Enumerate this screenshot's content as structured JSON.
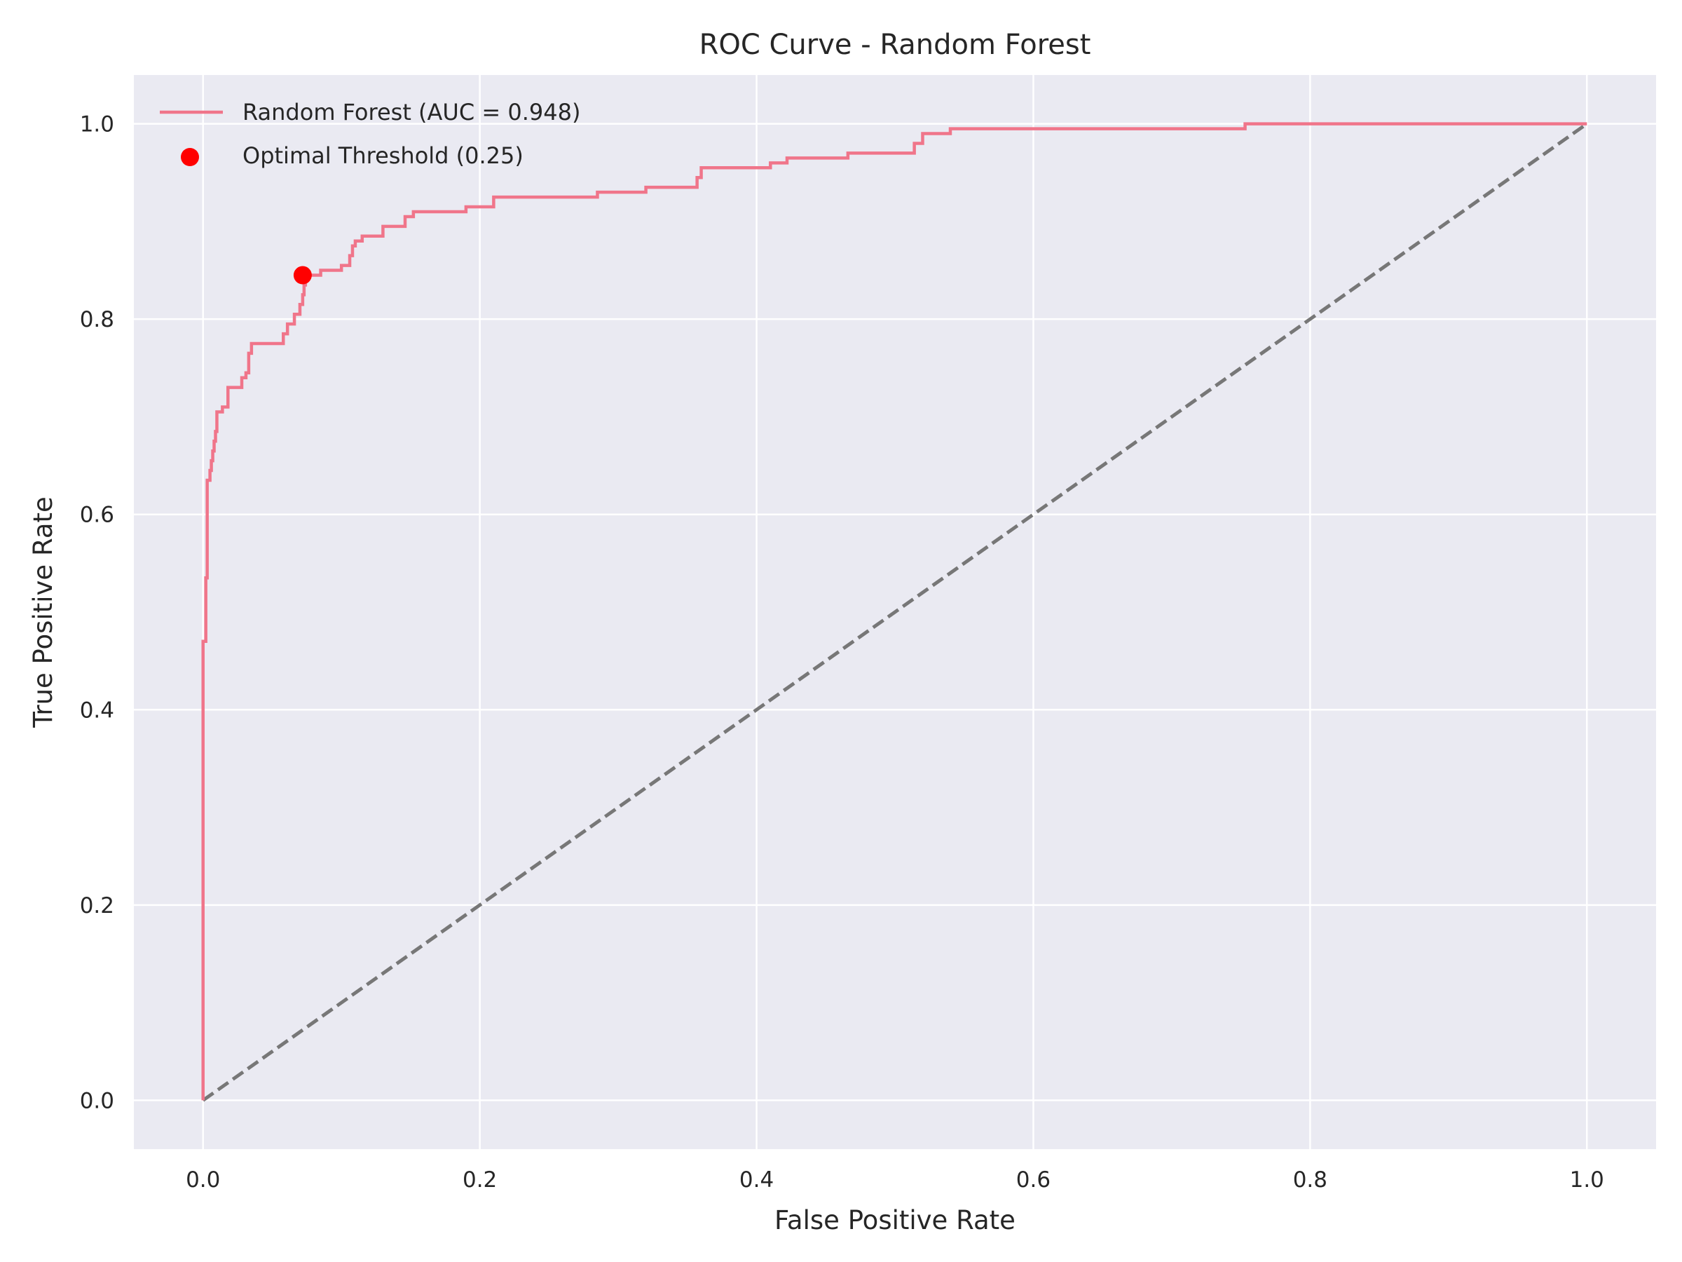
{
  "chart_data": {
    "type": "line",
    "title": "ROC Curve - Random Forest",
    "xlabel": "False Positive Rate",
    "ylabel": "True Positive Rate",
    "xlim": [
      -0.05,
      1.05
    ],
    "ylim": [
      -0.05,
      1.05
    ],
    "xticks": [
      "0.0",
      "0.2",
      "0.4",
      "0.6",
      "0.8",
      "1.0"
    ],
    "yticks": [
      "0.0",
      "0.2",
      "0.4",
      "0.6",
      "0.8",
      "1.0"
    ],
    "grid": true,
    "background_color": "#eaeaf2",
    "legend_position": "upper-left",
    "series": [
      {
        "name": "Random Forest (AUC = 0.948)",
        "color": "#f0758a",
        "style": "step-line",
        "points": [
          [
            0.0,
            0.0
          ],
          [
            0.0,
            0.47
          ],
          [
            0.002,
            0.47
          ],
          [
            0.002,
            0.535
          ],
          [
            0.003,
            0.535
          ],
          [
            0.003,
            0.635
          ],
          [
            0.005,
            0.635
          ],
          [
            0.005,
            0.645
          ],
          [
            0.006,
            0.645
          ],
          [
            0.006,
            0.655
          ],
          [
            0.007,
            0.655
          ],
          [
            0.007,
            0.665
          ],
          [
            0.008,
            0.665
          ],
          [
            0.008,
            0.675
          ],
          [
            0.009,
            0.675
          ],
          [
            0.009,
            0.685
          ],
          [
            0.01,
            0.685
          ],
          [
            0.01,
            0.705
          ],
          [
            0.014,
            0.705
          ],
          [
            0.014,
            0.71
          ],
          [
            0.018,
            0.71
          ],
          [
            0.018,
            0.73
          ],
          [
            0.028,
            0.73
          ],
          [
            0.028,
            0.74
          ],
          [
            0.031,
            0.74
          ],
          [
            0.031,
            0.745
          ],
          [
            0.033,
            0.745
          ],
          [
            0.033,
            0.765
          ],
          [
            0.035,
            0.765
          ],
          [
            0.035,
            0.775
          ],
          [
            0.058,
            0.775
          ],
          [
            0.058,
            0.785
          ],
          [
            0.061,
            0.785
          ],
          [
            0.061,
            0.795
          ],
          [
            0.066,
            0.795
          ],
          [
            0.066,
            0.805
          ],
          [
            0.07,
            0.805
          ],
          [
            0.07,
            0.815
          ],
          [
            0.072,
            0.815
          ],
          [
            0.072,
            0.825
          ],
          [
            0.073,
            0.825
          ],
          [
            0.073,
            0.835
          ],
          [
            0.074,
            0.835
          ],
          [
            0.074,
            0.845
          ],
          [
            0.085,
            0.845
          ],
          [
            0.085,
            0.85
          ],
          [
            0.1,
            0.85
          ],
          [
            0.1,
            0.855
          ],
          [
            0.106,
            0.855
          ],
          [
            0.106,
            0.865
          ],
          [
            0.108,
            0.865
          ],
          [
            0.108,
            0.875
          ],
          [
            0.11,
            0.875
          ],
          [
            0.11,
            0.88
          ],
          [
            0.115,
            0.88
          ],
          [
            0.115,
            0.885
          ],
          [
            0.13,
            0.885
          ],
          [
            0.13,
            0.895
          ],
          [
            0.146,
            0.895
          ],
          [
            0.146,
            0.905
          ],
          [
            0.152,
            0.905
          ],
          [
            0.152,
            0.91
          ],
          [
            0.19,
            0.91
          ],
          [
            0.19,
            0.915
          ],
          [
            0.21,
            0.915
          ],
          [
            0.21,
            0.925
          ],
          [
            0.285,
            0.925
          ],
          [
            0.285,
            0.93
          ],
          [
            0.32,
            0.93
          ],
          [
            0.32,
            0.935
          ],
          [
            0.357,
            0.935
          ],
          [
            0.357,
            0.945
          ],
          [
            0.36,
            0.945
          ],
          [
            0.36,
            0.955
          ],
          [
            0.41,
            0.955
          ],
          [
            0.41,
            0.96
          ],
          [
            0.422,
            0.96
          ],
          [
            0.422,
            0.965
          ],
          [
            0.466,
            0.965
          ],
          [
            0.466,
            0.97
          ],
          [
            0.514,
            0.97
          ],
          [
            0.514,
            0.98
          ],
          [
            0.52,
            0.98
          ],
          [
            0.52,
            0.99
          ],
          [
            0.54,
            0.99
          ],
          [
            0.54,
            0.995
          ],
          [
            0.753,
            0.995
          ],
          [
            0.753,
            1.0
          ],
          [
            1.0,
            1.0
          ]
        ]
      },
      {
        "name": "chance-diagonal",
        "color": "#777777",
        "style": "dashed",
        "points": [
          [
            0.0,
            0.0
          ],
          [
            1.0,
            1.0
          ]
        ]
      }
    ],
    "markers": [
      {
        "name": "Optimal Threshold (0.25)",
        "color": "#ff0000",
        "x": 0.072,
        "y": 0.845
      }
    ],
    "legend": [
      {
        "label": "Random Forest (AUC = 0.948)",
        "kind": "line",
        "color": "#f0758a"
      },
      {
        "label": "Optimal Threshold (0.25)",
        "kind": "dot",
        "color": "#ff0000"
      }
    ]
  }
}
